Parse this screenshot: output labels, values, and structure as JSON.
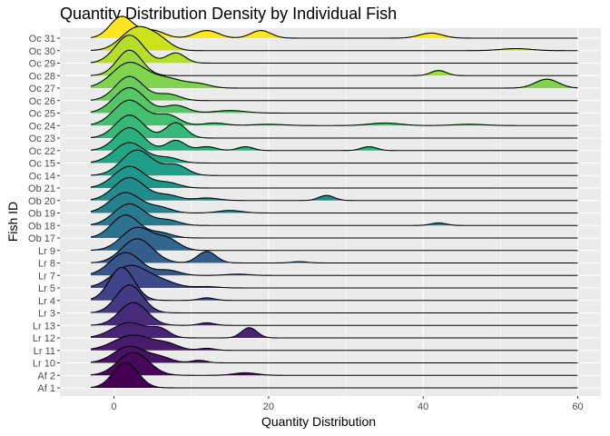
{
  "chart_data": {
    "type": "ridgeline",
    "title": "Quantity Distribution Density by Individual Fish",
    "xlabel": "Quantity Distribution",
    "ylabel": "Fish ID",
    "xlim": [
      -7,
      63
    ],
    "x_ticks": [
      0,
      20,
      40,
      60
    ],
    "x_tick_labels": [
      "0",
      "20",
      "40",
      "60"
    ],
    "grid": true,
    "legend": "none",
    "panel_background": "#ebebeb",
    "colormap": "viridis",
    "density_x_range": [
      -3,
      60
    ],
    "series": [
      {
        "name": "Af 1",
        "color": "#440154",
        "peaks": [
          [
            1.5,
            1.6,
            1.0
          ]
        ]
      },
      {
        "name": "Af 2",
        "color": "#46095c",
        "peaks": [
          [
            2.5,
            2.0,
            0.9
          ],
          [
            17,
            1.5,
            0.1
          ]
        ]
      },
      {
        "name": "Lr 10",
        "color": "#471365",
        "peaks": [
          [
            2.0,
            2.0,
            0.65
          ],
          [
            6,
            1.5,
            0.2
          ],
          [
            11,
            1.0,
            0.1
          ]
        ]
      },
      {
        "name": "Lr 11",
        "color": "#481b6d",
        "peaks": [
          [
            2.5,
            2.5,
            0.6
          ],
          [
            7,
            1.5,
            0.2
          ],
          [
            12,
            1.0,
            0.08
          ]
        ]
      },
      {
        "name": "Lr 12",
        "color": "#482475",
        "peaks": [
          [
            2.0,
            2.2,
            0.6
          ],
          [
            6,
            1.2,
            0.3
          ],
          [
            17.5,
            1.0,
            0.4
          ]
        ]
      },
      {
        "name": "Lr 13",
        "color": "#472b7a",
        "peaks": [
          [
            2.5,
            1.8,
            0.9
          ],
          [
            12,
            1.0,
            0.1
          ]
        ]
      },
      {
        "name": "Lr 3",
        "color": "#443a83",
        "peaks": [
          [
            2.0,
            1.7,
            1.1
          ]
        ]
      },
      {
        "name": "Lr 4",
        "color": "#414287",
        "peaks": [
          [
            1.0,
            1.6,
            1.3
          ],
          [
            12,
            1.0,
            0.1
          ]
        ]
      },
      {
        "name": "Lr 5",
        "color": "#3e4989",
        "peaks": [
          [
            2.0,
            2.2,
            0.85
          ],
          [
            6,
            2.0,
            0.25
          ],
          [
            12,
            1.5,
            0.05
          ]
        ]
      },
      {
        "name": "Lr 7",
        "color": "#39568c",
        "peaks": [
          [
            1.5,
            2.0,
            0.9
          ],
          [
            7,
            1.5,
            0.2
          ],
          [
            16,
            1.5,
            0.05
          ]
        ]
      },
      {
        "name": "Lr 8",
        "color": "#355e8d",
        "peaks": [
          [
            3.0,
            2.0,
            0.95
          ],
          [
            12,
            1.2,
            0.45
          ],
          [
            24,
            1.0,
            0.05
          ]
        ]
      },
      {
        "name": "Lr 9",
        "color": "#31668e",
        "peaks": [
          [
            3.0,
            2.0,
            0.9
          ],
          [
            7,
            1.5,
            0.4
          ]
        ]
      },
      {
        "name": "Ob 17",
        "color": "#2c728e",
        "peaks": [
          [
            1.5,
            1.8,
            0.9
          ],
          [
            6,
            1.5,
            0.2
          ]
        ]
      },
      {
        "name": "Ob 18",
        "color": "#29798e",
        "peaks": [
          [
            2.0,
            2.0,
            0.85
          ],
          [
            7,
            1.5,
            0.2
          ],
          [
            42,
            1.0,
            0.1
          ]
        ]
      },
      {
        "name": "Ob 19",
        "color": "#26818e",
        "peaks": [
          [
            1.5,
            2.0,
            0.8
          ],
          [
            6,
            1.5,
            0.2
          ],
          [
            15,
            1.5,
            0.1
          ]
        ]
      },
      {
        "name": "Ob 20",
        "color": "#238a8d",
        "peaks": [
          [
            2.0,
            2.0,
            0.9
          ],
          [
            7,
            1.5,
            0.2
          ],
          [
            12,
            1.5,
            0.1
          ],
          [
            27.5,
            1.0,
            0.2
          ]
        ]
      },
      {
        "name": "Ob 21",
        "color": "#1f968b",
        "peaks": [
          [
            2.0,
            2.0,
            0.85
          ],
          [
            7,
            1.5,
            0.2
          ]
        ]
      },
      {
        "name": "Oc 14",
        "color": "#1f9e89",
        "peaks": [
          [
            3.0,
            2.0,
            1.0
          ],
          [
            8,
            1.5,
            0.4
          ]
        ]
      },
      {
        "name": "Oc 15",
        "color": "#21a685",
        "peaks": [
          [
            2.0,
            2.0,
            0.8
          ],
          [
            7,
            1.5,
            0.2
          ]
        ]
      },
      {
        "name": "Oc 22",
        "color": "#2ab07f",
        "peaks": [
          [
            2.0,
            1.8,
            0.9
          ],
          [
            8,
            1.2,
            0.4
          ],
          [
            12,
            1.2,
            0.15
          ],
          [
            17,
            1.0,
            0.15
          ],
          [
            33,
            1.0,
            0.15
          ]
        ]
      },
      {
        "name": "Oc 23",
        "color": "#37b878",
        "peaks": [
          [
            2.0,
            1.8,
            0.9
          ],
          [
            8,
            1.3,
            0.6
          ]
        ]
      },
      {
        "name": "Oc 24",
        "color": "#44bf70",
        "peaks": [
          [
            2.0,
            2.0,
            1.0
          ],
          [
            7,
            1.5,
            0.4
          ],
          [
            13,
            1.5,
            0.1
          ],
          [
            20,
            2.0,
            0.05
          ],
          [
            35,
            2.0,
            0.1
          ],
          [
            46,
            2.0,
            0.05
          ]
        ]
      },
      {
        "name": "Oc 25",
        "color": "#55c667",
        "peaks": [
          [
            2.0,
            2.0,
            1.0
          ],
          [
            8,
            1.5,
            0.3
          ],
          [
            15,
            2.0,
            0.1
          ]
        ]
      },
      {
        "name": "Oc 26",
        "color": "#69cd5b",
        "peaks": [
          [
            2.0,
            1.8,
            0.95
          ],
          [
            7,
            1.5,
            0.25
          ]
        ]
      },
      {
        "name": "Oc 27",
        "color": "#80d34c",
        "peaks": [
          [
            2.0,
            2.2,
            1.0
          ],
          [
            7,
            2.0,
            0.35
          ],
          [
            11,
            1.5,
            0.15
          ],
          [
            56,
            1.5,
            0.35
          ]
        ]
      },
      {
        "name": "Oc 28",
        "color": "#9bd93c",
        "peaks": [
          [
            2.0,
            1.6,
            1.0
          ],
          [
            42,
            1.0,
            0.2
          ]
        ]
      },
      {
        "name": "Oc 29",
        "color": "#b5de2b",
        "peaks": [
          [
            2.0,
            1.8,
            1.1
          ],
          [
            8,
            1.2,
            0.4
          ]
        ]
      },
      {
        "name": "Oc 30",
        "color": "#cde11d",
        "peaks": [
          [
            3.0,
            2.0,
            0.9
          ],
          [
            6,
            1.5,
            0.3
          ],
          [
            52,
            2.0,
            0.08
          ]
        ]
      },
      {
        "name": "Oc 31",
        "color": "#fde725",
        "peaks": [
          [
            1.0,
            1.5,
            0.85
          ],
          [
            5,
            1.5,
            0.3
          ],
          [
            12,
            1.5,
            0.3
          ],
          [
            19,
            1.3,
            0.3
          ],
          [
            41,
            1.5,
            0.2
          ]
        ]
      }
    ]
  }
}
